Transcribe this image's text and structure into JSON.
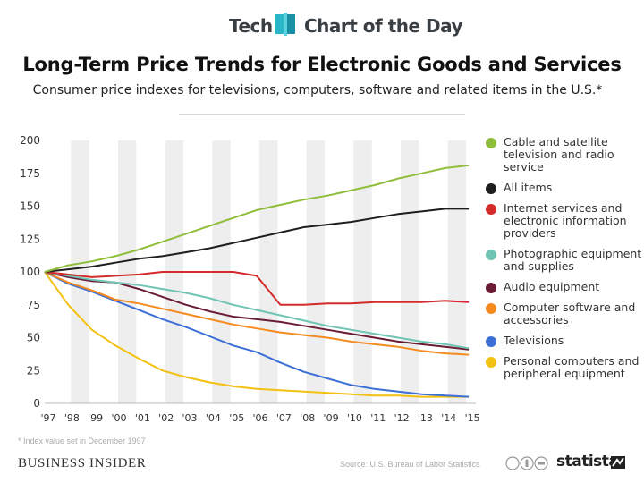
{
  "header": {
    "section": "Tech",
    "series_name": "Chart of the Day"
  },
  "colors": {
    "cable": "#8fbf3a",
    "all_items": "#1e1e1e",
    "internet": "#d42a2a",
    "photo": "#6fc4b4",
    "audio": "#6b1c34",
    "software": "#f58a1f",
    "tv": "#3b6fd6",
    "pc": "#f2c112"
  },
  "footer": {
    "footnote": "* Index value set in December 1997",
    "brand": "BUSINESS INSIDER",
    "source": "Source: U.S. Bureau of Labor Statistics",
    "logo": "statista"
  },
  "chart_data": {
    "type": "line",
    "title": "Long-Term Price Trends for Electronic Goods and Services",
    "subtitle": "Consumer price indexes for televisions, computers, software and related items in the U.S.*",
    "xlabel": "",
    "ylabel": "",
    "x": [
      1997,
      1998,
      1999,
      2000,
      2001,
      2002,
      2003,
      2004,
      2005,
      2006,
      2007,
      2008,
      2009,
      2010,
      2011,
      2012,
      2013,
      2014,
      2015
    ],
    "x_tick_labels": [
      "'97",
      "'98",
      "'99",
      "'00",
      "'01",
      "'02",
      "'03",
      "'04",
      "'05",
      "'06",
      "'07",
      "'08",
      "'09",
      "'10",
      "'11",
      "'12",
      "'13",
      "'14",
      "'15"
    ],
    "y_ticks": [
      0,
      25,
      50,
      75,
      100,
      125,
      150,
      175,
      200
    ],
    "ylim": [
      0,
      200
    ],
    "xlim": [
      1997,
      2015.3
    ],
    "grid": "alternating vertical bands",
    "legend": "right",
    "series": [
      {
        "key": "cable",
        "name": "Cable and satellite television and radio service",
        "values": [
          100,
          105,
          108,
          112,
          117,
          123,
          129,
          135,
          141,
          147,
          151,
          155,
          158,
          162,
          166,
          171,
          175,
          179,
          181
        ]
      },
      {
        "key": "all_items",
        "name": "All items",
        "values": [
          100,
          102,
          104,
          107,
          110,
          112,
          115,
          118,
          122,
          126,
          130,
          134,
          136,
          138,
          141,
          144,
          146,
          148,
          148
        ]
      },
      {
        "key": "internet",
        "name": "Internet services and electronic information providers",
        "values": [
          100,
          98,
          96,
          97,
          98,
          100,
          100,
          100,
          100,
          97,
          75,
          75,
          76,
          76,
          77,
          77,
          77,
          78,
          77
        ]
      },
      {
        "key": "photo",
        "name": "Photographic equipment and supplies",
        "values": [
          100,
          97,
          94,
          92,
          90,
          87,
          84,
          80,
          75,
          71,
          67,
          63,
          59,
          56,
          53,
          50,
          47,
          45,
          42
        ]
      },
      {
        "key": "audio",
        "name": "Audio equipment",
        "values": [
          100,
          96,
          93,
          92,
          87,
          81,
          75,
          70,
          66,
          64,
          62,
          59,
          56,
          53,
          50,
          47,
          45,
          43,
          41
        ]
      },
      {
        "key": "software",
        "name": "Computer software and accessories",
        "values": [
          100,
          92,
          86,
          79,
          76,
          72,
          68,
          64,
          60,
          57,
          54,
          52,
          50,
          47,
          45,
          43,
          40,
          38,
          37
        ]
      },
      {
        "key": "tv",
        "name": "Televisions",
        "values": [
          100,
          91,
          85,
          78,
          71,
          64,
          58,
          51,
          44,
          39,
          31,
          24,
          19,
          14,
          11,
          9,
          7,
          6,
          5
        ]
      },
      {
        "key": "pc",
        "name": "Personal computers and peripheral equipment",
        "values": [
          100,
          75,
          56,
          44,
          34,
          25,
          20,
          16,
          13,
          11,
          10,
          9,
          8,
          7,
          6,
          6,
          5,
          5,
          5
        ]
      }
    ]
  }
}
